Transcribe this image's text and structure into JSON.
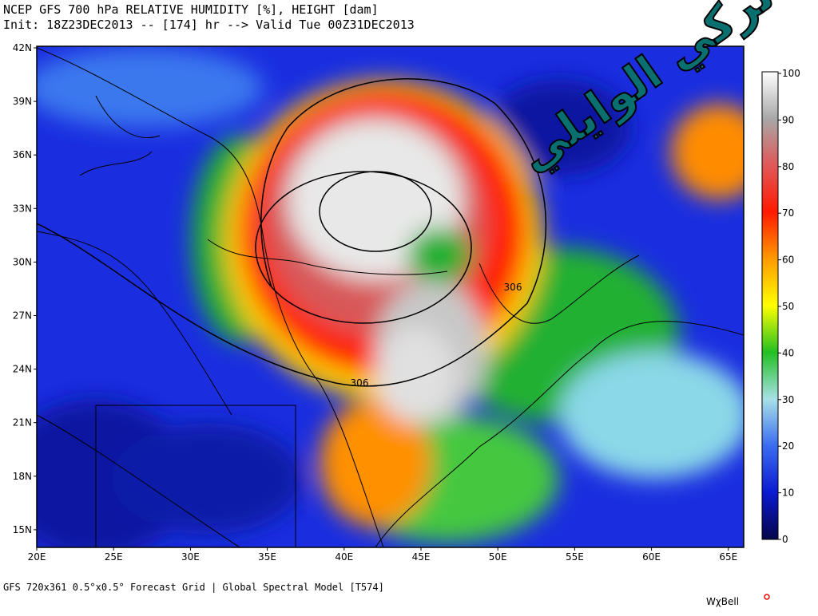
{
  "header": {
    "title": "NCEP GFS 700 hPa RELATIVE HUMIDITY [%], HEIGHT [dam]",
    "subtitle": "Init: 18Z23DEC2013 -- [174] hr --> Valid Tue 00Z31DEC2013"
  },
  "map": {
    "lat_labels": [
      "42N",
      "39N",
      "36N",
      "33N",
      "30N",
      "27N",
      "24N",
      "21N",
      "18N",
      "15N"
    ],
    "lon_labels": [
      "20E",
      "25E",
      "30E",
      "35E",
      "40E",
      "45E",
      "50E",
      "55E",
      "60E",
      "65E"
    ],
    "contour_labels": [
      "306",
      "306"
    ]
  },
  "colorbar": {
    "ticks": [
      0,
      10,
      20,
      30,
      40,
      50,
      60,
      70,
      80,
      90,
      100
    ]
  },
  "watermark": "تركي الوايلي",
  "footer": {
    "text": "GFS 720x361 0.5°x0.5° Forecast Grid | Global Spectral Model [T574]",
    "logo": "WχBell"
  }
}
